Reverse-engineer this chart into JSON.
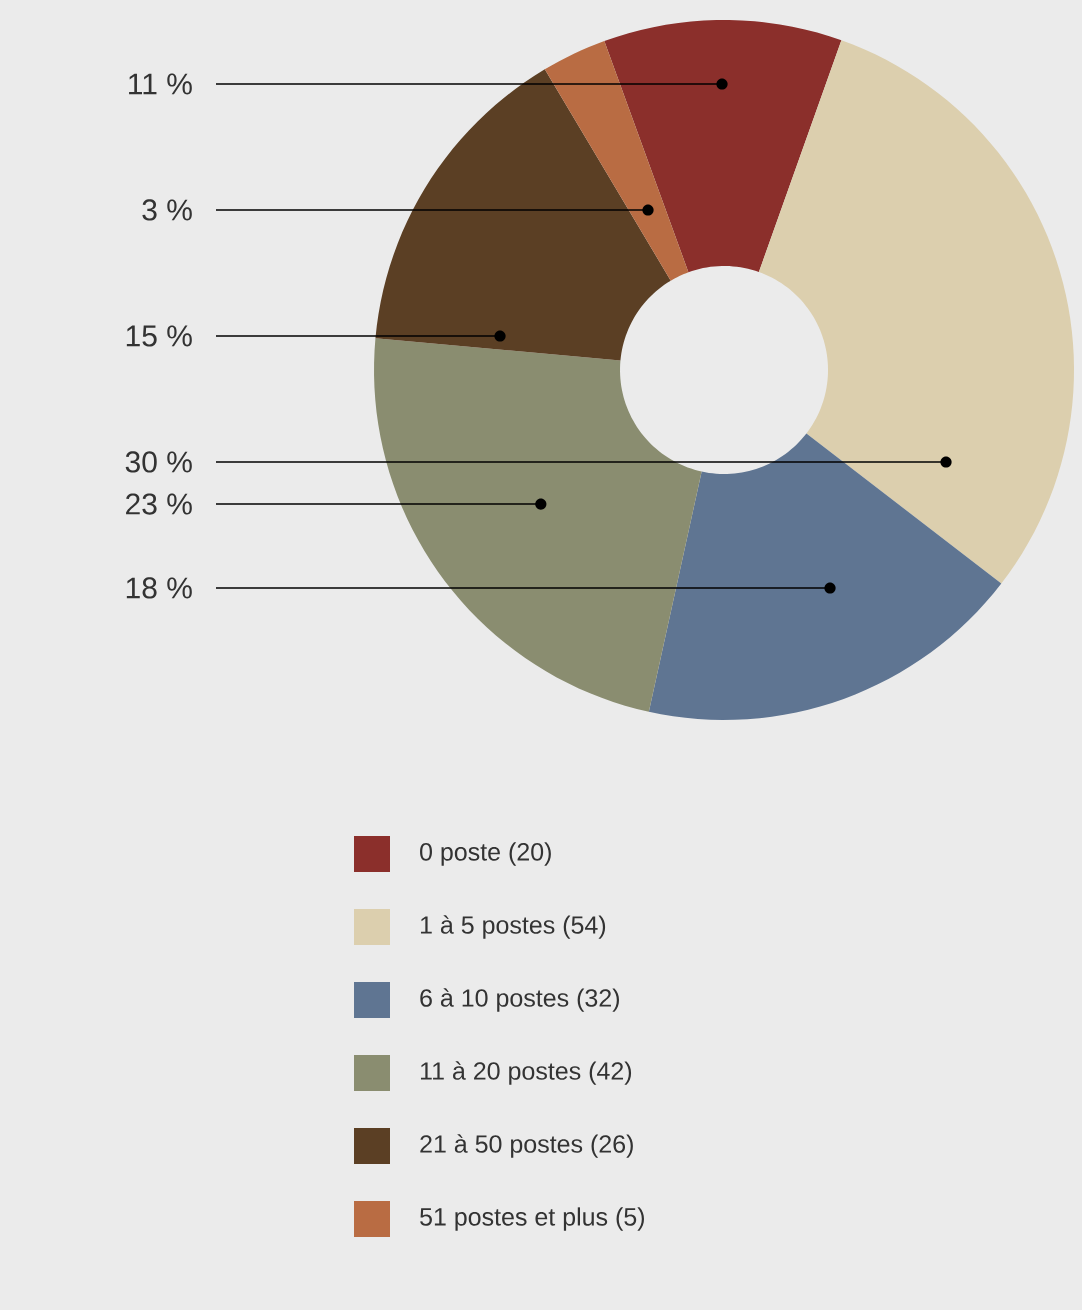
{
  "chart_data": {
    "type": "donut",
    "categories": [
      "0 poste (20)",
      "1 à 5 postes (54)",
      "6 à 10 postes (32)",
      "11 à 20 postes (42)",
      "21 à 50 postes (26)",
      "51 postes et plus (5)"
    ],
    "values": [
      11,
      30,
      18,
      23,
      15,
      3
    ],
    "colors": [
      "#8b2f2b",
      "#dccfae",
      "#5f7592",
      "#8a8d70",
      "#5b3f24",
      "#b96c43"
    ],
    "value_labels": [
      "11 %",
      "30 %",
      "18 %",
      "23 %",
      "15 %",
      "3 %"
    ],
    "legend": "bottom"
  }
}
